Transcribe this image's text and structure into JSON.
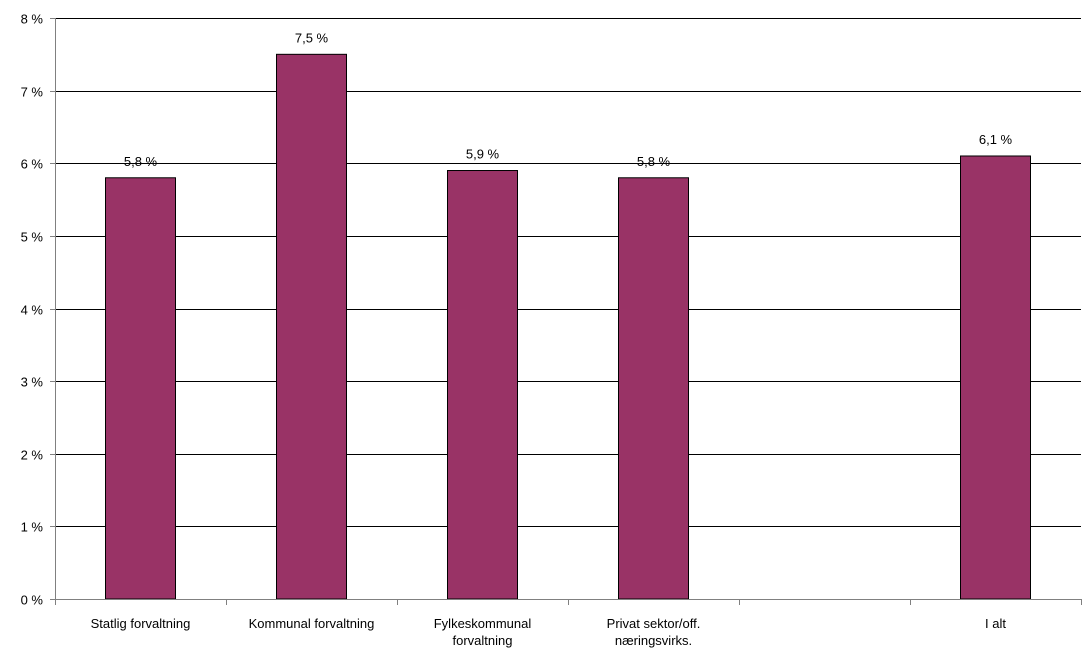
{
  "chart_data": {
    "type": "bar",
    "title": "",
    "xlabel": "",
    "ylabel": "",
    "categories": [
      "Statlig forvaltning",
      "Kommunal forvaltning",
      "Fylkeskommunal forvaltning",
      "Privat sektor/off. næringsvirks.",
      "",
      "I alt"
    ],
    "category_lines": [
      [
        "Statlig forvaltning"
      ],
      [
        "Kommunal forvaltning"
      ],
      [
        "Fylkeskommunal",
        "forvaltning"
      ],
      [
        "Privat sektor/off.",
        "næringsvirks."
      ],
      [],
      [
        "I alt"
      ]
    ],
    "values": [
      5.8,
      7.5,
      5.9,
      5.8,
      null,
      6.1
    ],
    "data_labels": [
      "5,8 %",
      "7,5 %",
      "5,9 %",
      "5,8 %",
      "",
      "6,1 %"
    ],
    "y_ticks": [
      0,
      1,
      2,
      3,
      4,
      5,
      6,
      7,
      8
    ],
    "y_tick_labels": [
      "0 %",
      "1 %",
      "2 %",
      "3 %",
      "4 %",
      "5 %",
      "6 %",
      "7 %",
      "8 %"
    ],
    "ylim": [
      0,
      8
    ],
    "grid": true,
    "legend": false,
    "colors": {
      "bar_fill": "#993366",
      "bar_stroke": "#000000",
      "grid": "#000000",
      "axis": "#808080"
    }
  }
}
